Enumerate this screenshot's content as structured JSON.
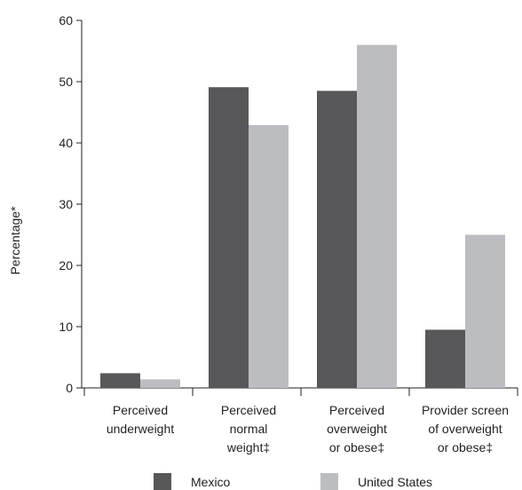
{
  "chart_data": {
    "type": "bar",
    "ylabel": "Percentage*",
    "ylim": [
      0,
      60
    ],
    "yticks": [
      "0",
      "10",
      "20",
      "30",
      "40",
      "50",
      "60"
    ],
    "ytick_values": [
      0,
      10,
      20,
      30,
      40,
      50,
      60
    ],
    "categories": [
      [
        "Perceived",
        "underweight"
      ],
      [
        "Perceived",
        "normal",
        "weight‡"
      ],
      [
        "Perceived",
        "overweight",
        "or obese‡"
      ],
      [
        "Provider screen",
        "of overweight",
        "or obese‡"
      ]
    ],
    "series": [
      {
        "name": "Mexico",
        "color": "#58585a",
        "values": [
          2.4,
          49.1,
          48.5,
          9.5
        ]
      },
      {
        "name": "United States",
        "color": "#bcbdc0",
        "values": [
          1.4,
          42.9,
          56.0,
          25.0
        ]
      }
    ],
    "legend_placement": "bottom",
    "grid": false
  }
}
